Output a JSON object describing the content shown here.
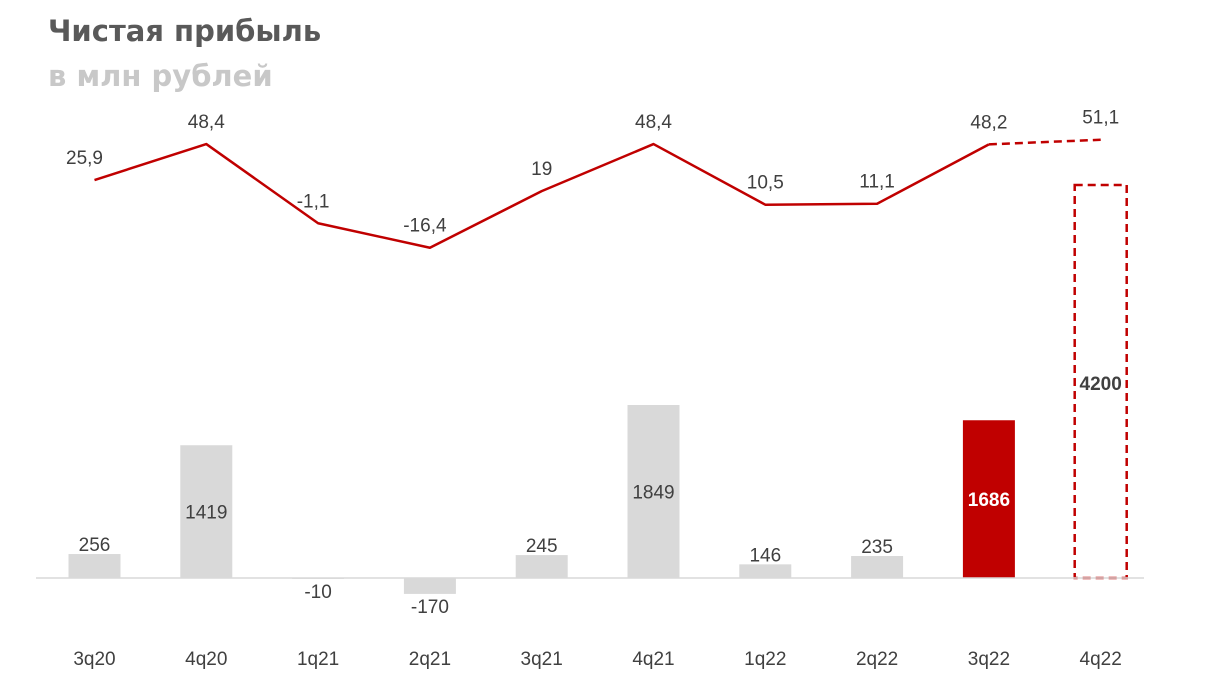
{
  "title": "Чистая прибыль",
  "subtitle": "в млн рублей",
  "colors": {
    "bar": "#d9d9d9",
    "bar_highlight": "#c00000",
    "line": "#c00000",
    "axis": "#d9d9d9",
    "text": "#404040",
    "title": "#595959",
    "subtitle": "#c8c8c8"
  },
  "chart_data": {
    "type": "bar",
    "categories": [
      "3q20",
      "4q20",
      "1q21",
      "2q21",
      "3q21",
      "4q21",
      "1q22",
      "2q22",
      "3q22",
      "4q22"
    ],
    "series": [
      {
        "type": "bar",
        "values": [
          256,
          1419,
          -10,
          -170,
          245,
          1849,
          146,
          235,
          1686,
          4200
        ],
        "labels": [
          "256",
          "1419",
          "-10",
          "-170",
          "245",
          "1849",
          "146",
          "235",
          "1686",
          "4200"
        ],
        "highlight_index": 8,
        "forecast_index": 9
      },
      {
        "type": "line",
        "values": [
          25.9,
          48.4,
          -1.1,
          -16.4,
          19,
          48.4,
          10.5,
          11.1,
          48.2,
          51.1
        ],
        "labels": [
          "25,9",
          "48,4",
          "-1,1",
          "-16,4",
          "19",
          "48,4",
          "10,5",
          "11,1",
          "48,2",
          "51,1"
        ],
        "forecast_from_index": 8
      }
    ],
    "xlabel": "",
    "ylabel": "",
    "grid": false,
    "legend": "none"
  }
}
